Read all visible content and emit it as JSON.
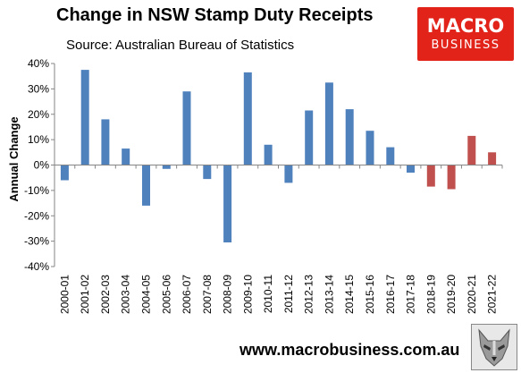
{
  "title": "Change in NSW Stamp Duty Receipts",
  "subtitle": "Source: Australian Bureau of Statistics",
  "logo": {
    "line1": "MACRO",
    "line2": "BUSINESS",
    "color": "#e2231a"
  },
  "footer": {
    "url": "www.macrobusiness.com.au"
  },
  "colors": {
    "positive_era": "#4f81bd",
    "recent_era": "#c0504d"
  },
  "chart_data": {
    "type": "bar",
    "title": "Change in NSW Stamp Duty Receipts",
    "subtitle": "Source: Australian Bureau of Statistics",
    "xlabel": "",
    "ylabel": "Annual Change",
    "ylim": [
      -40,
      40
    ],
    "yticks": [
      -40,
      -30,
      -20,
      -10,
      0,
      10,
      20,
      30,
      40
    ],
    "ytick_labels": [
      "-40%",
      "-30%",
      "-20%",
      "-10%",
      "0%",
      "10%",
      "20%",
      "30%",
      "40%"
    ],
    "grid": false,
    "legend": "none",
    "categories": [
      "2000-01",
      "2001-02",
      "2002-03",
      "2003-04",
      "2004-05",
      "2005-06",
      "2006-07",
      "2007-08",
      "2008-09",
      "2009-10",
      "2010-11",
      "2011-12",
      "2012-13",
      "2013-14",
      "2014-15",
      "2015-16",
      "2016-17",
      "2017-18",
      "2018-19",
      "2019-20",
      "2020-21",
      "2021-22"
    ],
    "values": [
      -6,
      37.5,
      18,
      6.5,
      -16,
      -1.5,
      29,
      -5.5,
      -30.5,
      36.5,
      8,
      -7,
      21.5,
      32.5,
      22,
      13.5,
      7,
      -3,
      -8.5,
      -9.5,
      11.5,
      5
    ],
    "bar_colors": [
      "#4f81bd",
      "#4f81bd",
      "#4f81bd",
      "#4f81bd",
      "#4f81bd",
      "#4f81bd",
      "#4f81bd",
      "#4f81bd",
      "#4f81bd",
      "#4f81bd",
      "#4f81bd",
      "#4f81bd",
      "#4f81bd",
      "#4f81bd",
      "#4f81bd",
      "#4f81bd",
      "#4f81bd",
      "#4f81bd",
      "#c0504d",
      "#c0504d",
      "#c0504d",
      "#c0504d"
    ]
  }
}
